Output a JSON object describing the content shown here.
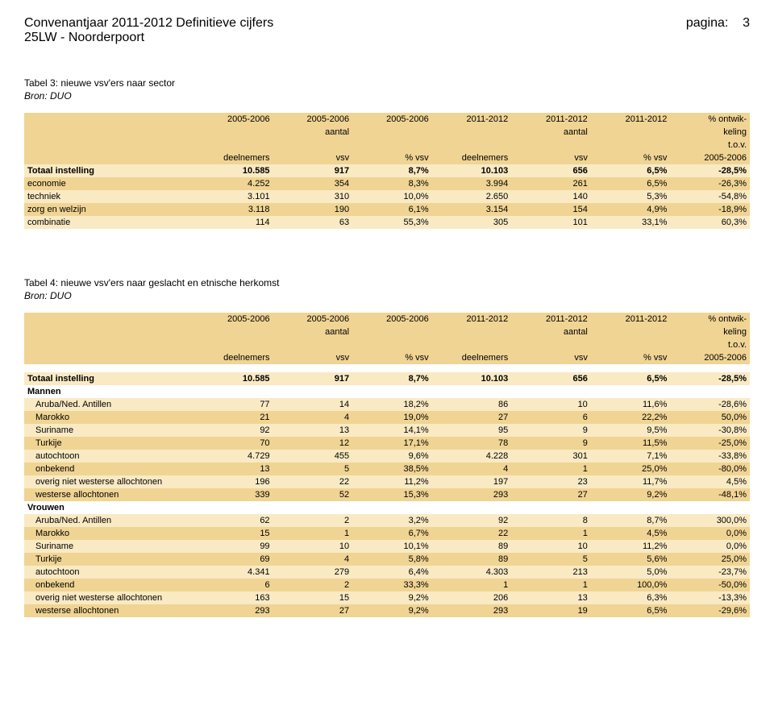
{
  "page": {
    "title": "Convenantjaar 2011-2012 Definitieve cijfers",
    "page_label": "pagina:",
    "page_number": "3",
    "subtitle": "25LW - Noorderpoort"
  },
  "header_bg": "#f0d493",
  "row_alt_bg": "#f9eac4",
  "columns": {
    "c1_top": "2005-2006",
    "c1_mid": "",
    "c1_bot": "deelnemers",
    "c2_top": "2005-2006",
    "c2_mid": "aantal",
    "c2_bot": "vsv",
    "c3_top": "2005-2006",
    "c3_mid": "",
    "c3_bot": "% vsv",
    "c4_top": "2011-2012",
    "c4_mid": "",
    "c4_bot": "deelnemers",
    "c5_top": "2011-2012",
    "c5_mid": "aantal",
    "c5_bot": "vsv",
    "c6_top": "2011-2012",
    "c6_mid": "",
    "c6_bot": "% vsv",
    "c7_top": "% ontwik-",
    "c7_mid": "keling",
    "c7_mid2": "t.o.v.",
    "c7_bot": "2005-2006"
  },
  "table3": {
    "caption": "Tabel 3: nieuwe vsv'ers naar sector",
    "source": "Bron: DUO",
    "rows": [
      {
        "label": "Totaal instelling",
        "v": [
          "10.585",
          "917",
          "8,7%",
          "10.103",
          "656",
          "6,5%",
          "-28,5%"
        ],
        "bold": true
      },
      {
        "label": "economie",
        "v": [
          "4.252",
          "354",
          "8,3%",
          "3.994",
          "261",
          "6,5%",
          "-26,3%"
        ]
      },
      {
        "label": "techniek",
        "v": [
          "3.101",
          "310",
          "10,0%",
          "2.650",
          "140",
          "5,3%",
          "-54,8%"
        ]
      },
      {
        "label": "zorg en welzijn",
        "v": [
          "3.118",
          "190",
          "6,1%",
          "3.154",
          "154",
          "4,9%",
          "-18,9%"
        ]
      },
      {
        "label": "combinatie",
        "v": [
          "114",
          "63",
          "55,3%",
          "305",
          "101",
          "33,1%",
          "60,3%"
        ]
      }
    ]
  },
  "table4": {
    "caption": "Tabel 4: nieuwe vsv'ers naar geslacht en etnische herkomst",
    "source": "Bron: DUO",
    "total": {
      "label": "Totaal instelling",
      "v": [
        "10.585",
        "917",
        "8,7%",
        "10.103",
        "656",
        "6,5%",
        "-28,5%"
      ]
    },
    "mannen_label": "Mannen",
    "mannen": [
      {
        "label": "Aruba/Ned. Antillen",
        "v": [
          "77",
          "14",
          "18,2%",
          "86",
          "10",
          "11,6%",
          "-28,6%"
        ]
      },
      {
        "label": "Marokko",
        "v": [
          "21",
          "4",
          "19,0%",
          "27",
          "6",
          "22,2%",
          "50,0%"
        ]
      },
      {
        "label": "Suriname",
        "v": [
          "92",
          "13",
          "14,1%",
          "95",
          "9",
          "9,5%",
          "-30,8%"
        ]
      },
      {
        "label": "Turkije",
        "v": [
          "70",
          "12",
          "17,1%",
          "78",
          "9",
          "11,5%",
          "-25,0%"
        ]
      },
      {
        "label": "autochtoon",
        "v": [
          "4.729",
          "455",
          "9,6%",
          "4.228",
          "301",
          "7,1%",
          "-33,8%"
        ]
      },
      {
        "label": "onbekend",
        "v": [
          "13",
          "5",
          "38,5%",
          "4",
          "1",
          "25,0%",
          "-80,0%"
        ]
      },
      {
        "label": "overig niet westerse allochtonen",
        "v": [
          "196",
          "22",
          "11,2%",
          "197",
          "23",
          "11,7%",
          "4,5%"
        ]
      },
      {
        "label": "westerse allochtonen",
        "v": [
          "339",
          "52",
          "15,3%",
          "293",
          "27",
          "9,2%",
          "-48,1%"
        ]
      }
    ],
    "vrouwen_label": "Vrouwen",
    "vrouwen": [
      {
        "label": "Aruba/Ned. Antillen",
        "v": [
          "62",
          "2",
          "3,2%",
          "92",
          "8",
          "8,7%",
          "300,0%"
        ]
      },
      {
        "label": "Marokko",
        "v": [
          "15",
          "1",
          "6,7%",
          "22",
          "1",
          "4,5%",
          "0,0%"
        ]
      },
      {
        "label": "Suriname",
        "v": [
          "99",
          "10",
          "10,1%",
          "89",
          "10",
          "11,2%",
          "0,0%"
        ]
      },
      {
        "label": "Turkije",
        "v": [
          "69",
          "4",
          "5,8%",
          "89",
          "5",
          "5,6%",
          "25,0%"
        ]
      },
      {
        "label": "autochtoon",
        "v": [
          "4.341",
          "279",
          "6,4%",
          "4.303",
          "213",
          "5,0%",
          "-23,7%"
        ]
      },
      {
        "label": "onbekend",
        "v": [
          "6",
          "2",
          "33,3%",
          "1",
          "1",
          "100,0%",
          "-50,0%"
        ]
      },
      {
        "label": "overig niet westerse allochtonen",
        "v": [
          "163",
          "15",
          "9,2%",
          "206",
          "13",
          "6,3%",
          "-13,3%"
        ]
      },
      {
        "label": "westerse allochtonen",
        "v": [
          "293",
          "27",
          "9,2%",
          "293",
          "19",
          "6,5%",
          "-29,6%"
        ]
      }
    ]
  }
}
